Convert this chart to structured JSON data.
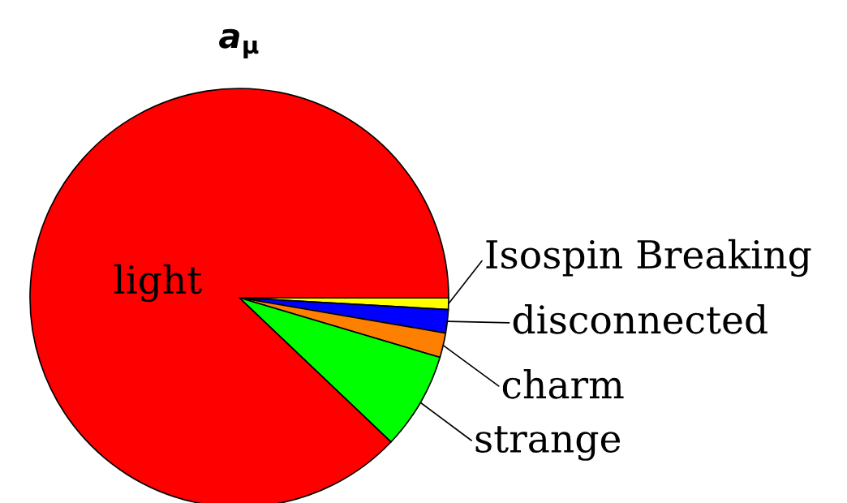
{
  "chart_data": {
    "type": "pie",
    "title": "a$_{μ}$",
    "categories": [
      "Isospin Breaking",
      "disconnected",
      "charm",
      "strange",
      "light"
    ],
    "values": [
      0.9,
      1.8,
      1.9,
      7.5,
      87.9
    ],
    "colors": [
      "#ffff00",
      "#0000ff",
      "#ff7f00",
      "#00ff00",
      "#ff0000"
    ]
  }
}
